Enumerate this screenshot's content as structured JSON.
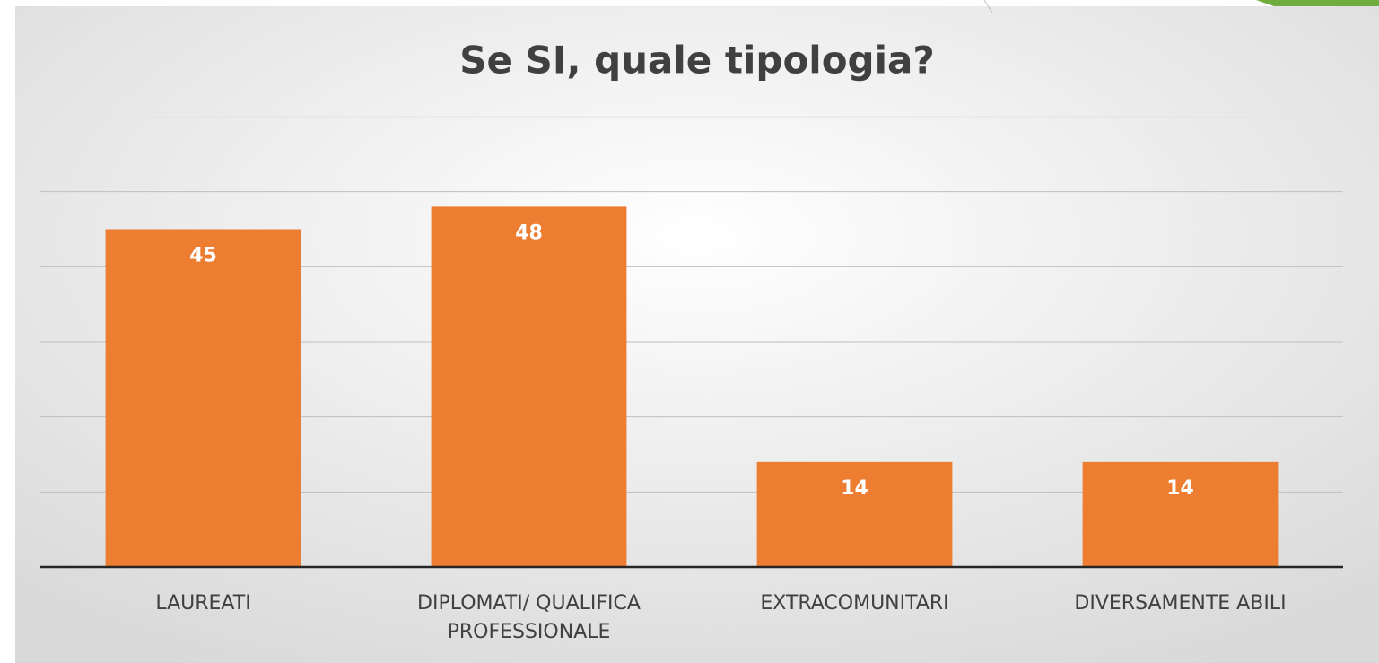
{
  "chart_data": {
    "type": "bar",
    "title": "Se SI, quale tipologia?",
    "categories": [
      "LAUREATI",
      "DIPLOMATI/ QUALIFICA PROFESSIONALE",
      "EXTRACOMUNITARI",
      "DIVERSAMENTE ABILI"
    ],
    "values": [
      45,
      48,
      14,
      14
    ],
    "color": "#ed7d31",
    "ylim": [
      0,
      60
    ],
    "yticks": [
      0,
      10,
      20,
      30,
      40,
      50,
      60
    ],
    "grid": true
  }
}
